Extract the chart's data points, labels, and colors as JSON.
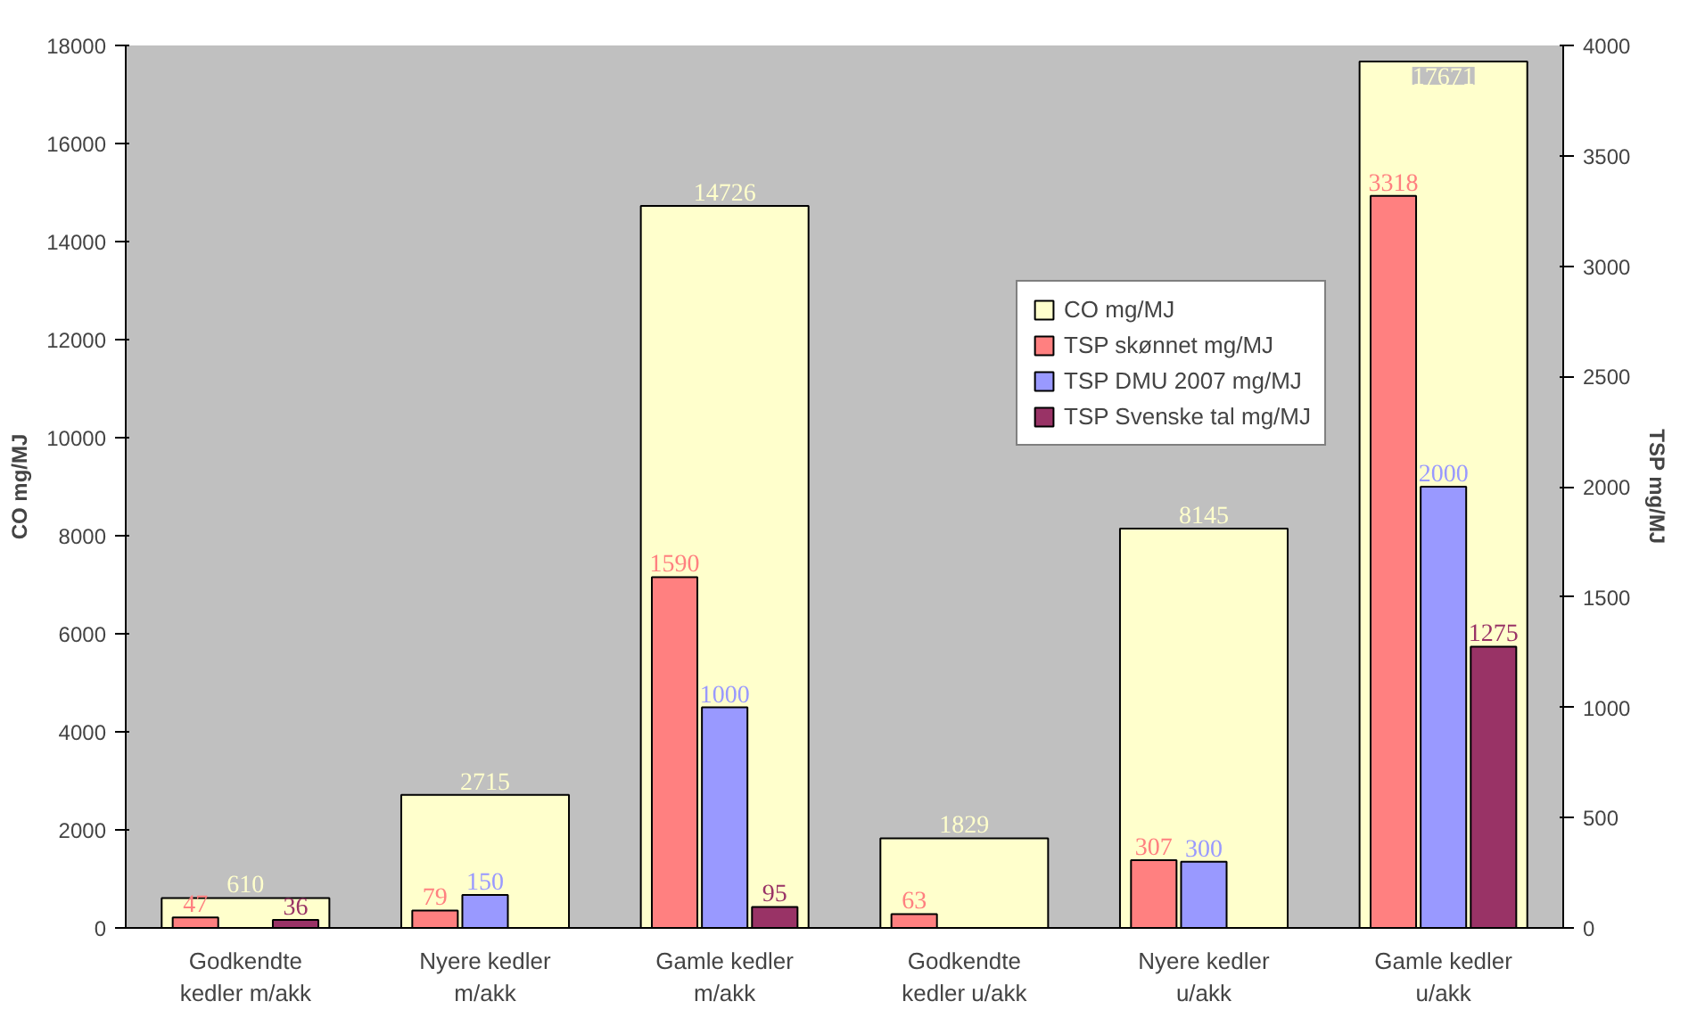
{
  "chart_data": {
    "type": "bar",
    "ylabel": "CO mg/MJ",
    "y2label": "TSP mg/MJ",
    "categories": [
      "Godkendte\nkedler m/akk",
      "Nyere kedler\nm/akk",
      "Gamle kedler\nm/akk",
      "Godkendte\nkedler u/akk",
      "Nyere kedler\nu/akk",
      "Gamle kedler\nu/akk"
    ],
    "series": [
      {
        "name": "CO mg/MJ",
        "color": "#ffffcc",
        "values": [
          610,
          2715,
          14726,
          1829,
          8145,
          17671
        ]
      },
      {
        "name": "TSP skønnet mg/MJ",
        "color": "#ff8080",
        "axis": "y2",
        "values": [
          47,
          79,
          1590,
          63,
          307,
          3318
        ]
      },
      {
        "name": "TSP DMU 2007 mg/MJ",
        "color": "#9999ff",
        "axis": "y2",
        "values": [
          null,
          150,
          1000,
          null,
          300,
          2000
        ]
      },
      {
        "name": "TSP Svenske tal mg/MJ",
        "color": "#993366",
        "axis": "y2",
        "values": [
          36,
          null,
          95,
          null,
          null,
          1275
        ]
      }
    ],
    "ylim": [
      0,
      18000
    ],
    "yticks": [
      0,
      2000,
      4000,
      6000,
      8000,
      10000,
      12000,
      14000,
      16000,
      18000
    ],
    "y2lim": [
      0,
      4000
    ],
    "y2ticks": [
      0,
      500,
      1000,
      1500,
      2000,
      2500,
      3000,
      3500,
      4000
    ],
    "data_labels": true,
    "legend": "top right",
    "grid": false
  }
}
